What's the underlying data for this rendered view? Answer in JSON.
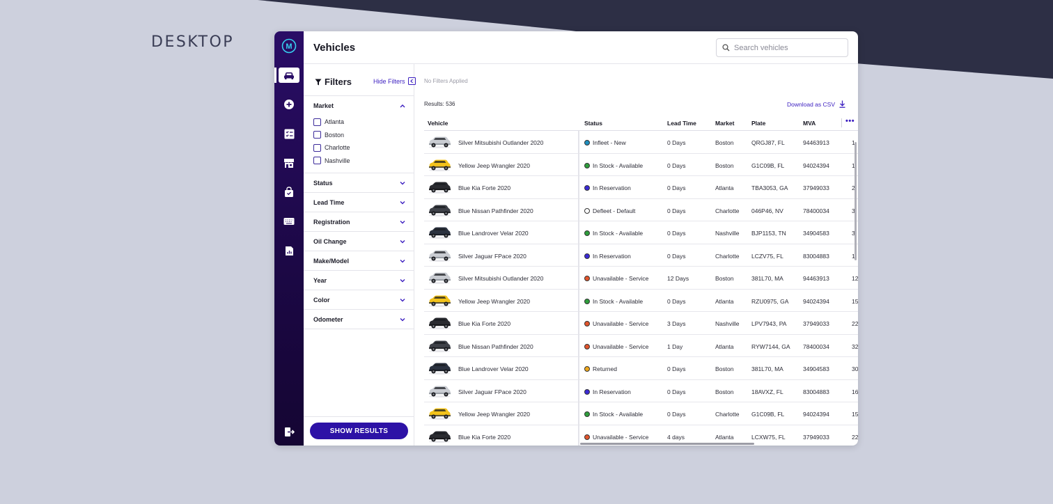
{
  "caption": "DESKTOP",
  "colors": {
    "accent": "#3b1ec0",
    "rail_top": "#2a0d66",
    "rail_bottom": "#150533",
    "background": "#cdd0dd",
    "dark_band": "#2d2f45"
  },
  "app": {
    "logo_letter": "M",
    "rail_icons": [
      "car-icon",
      "plus-circle-icon",
      "checklist-icon",
      "store-icon",
      "shopping-bag-icon",
      "keyboard-icon",
      "report-icon",
      "logout-icon"
    ],
    "title": "Vehicles",
    "search_placeholder": "Search vehicles"
  },
  "filters": {
    "title": "Filters",
    "hide_label": "Hide Filters",
    "market": {
      "label": "Market",
      "options": [
        "Atlanta",
        "Boston",
        "Charlotte",
        "Nashville"
      ]
    },
    "sections": [
      "Status",
      "Lead Time",
      "Registration",
      "Oil Change",
      "Make/Model",
      "Year",
      "Color",
      "Odometer"
    ],
    "show_results": "SHOW RESULTS"
  },
  "main": {
    "no_filters": "No Filters Applied",
    "results": "Results: 536",
    "download": "Download as CSV"
  },
  "table": {
    "columns": [
      "Vehicle",
      "Status",
      "Lead Time",
      "Market",
      "Plate",
      "MVA"
    ],
    "more": "•••",
    "rows": [
      {
        "vehicle": "Silver Mitsubishi Outlander 2020",
        "car": "silver",
        "status": "Infleet - New",
        "status_color": "#1e8fbf",
        "lead": "0 Days",
        "market": "Boston",
        "plate": "QRGJ87, FL",
        "mva": "94463913",
        "extra": "1"
      },
      {
        "vehicle": "Yellow Jeep Wrangler 2020",
        "car": "yellow",
        "status": "In Stock - Available",
        "status_color": "#2e9e3c",
        "lead": "0 Days",
        "market": "Boston",
        "plate": "G1C09B, FL",
        "mva": "94024394",
        "extra": "1"
      },
      {
        "vehicle": "Blue Kia Forte 2020",
        "car": "black",
        "status": "In Reservation",
        "status_color": "#3b2ad6",
        "lead": "0 Days",
        "market": "Atlanta",
        "plate": "TBA3053, GA",
        "mva": "37949033",
        "extra": "2"
      },
      {
        "vehicle": "Blue Nissan Pathfinder 2020",
        "car": "dark",
        "status": "Defleet - Default",
        "status_color": "#ffffff",
        "lead": "0 Days",
        "market": "Charlotte",
        "plate": "046P46, NV",
        "mva": "78400034",
        "extra": "3"
      },
      {
        "vehicle": "Blue Landrover Velar 2020",
        "car": "navy",
        "status": "In Stock - Available",
        "status_color": "#2e9e3c",
        "lead": "0 Days",
        "market": "Nashville",
        "plate": "BJP1153, TN",
        "mva": "34904583",
        "extra": "3"
      },
      {
        "vehicle": "Silver Jaguar FPace 2020",
        "car": "silver",
        "status": "In Reservation",
        "status_color": "#3b2ad6",
        "lead": "0 Days",
        "market": "Charlotte",
        "plate": "LCZV75, FL",
        "mva": "83004883",
        "extra": "1"
      },
      {
        "vehicle": "Silver Mitsubishi Outlander 2020",
        "car": "silver",
        "status": "Unavailable - Service",
        "status_color": "#e2552c",
        "lead": "12 Days",
        "market": "Boston",
        "plate": "381L70, MA",
        "mva": "94463913",
        "extra": "12"
      },
      {
        "vehicle": "Yellow Jeep Wrangler 2020",
        "car": "yellow",
        "status": "In Stock - Available",
        "status_color": "#2e9e3c",
        "lead": "0 Days",
        "market": "Atlanta",
        "plate": "RZU0975, GA",
        "mva": "94024394",
        "extra": "15"
      },
      {
        "vehicle": "Blue Kia Forte 2020",
        "car": "black",
        "status": "Unavailable - Service",
        "status_color": "#e2552c",
        "lead": "3 Days",
        "market": "Nashville",
        "plate": "LPV7943, PA",
        "mva": "37949033",
        "extra": "22"
      },
      {
        "vehicle": "Blue Nissan Pathfinder 2020",
        "car": "dark",
        "status": "Unavailable - Service",
        "status_color": "#e2552c",
        "lead": "1 Day",
        "market": "Atlanta",
        "plate": "RYW7144, GA",
        "mva": "78400034",
        "extra": "32"
      },
      {
        "vehicle": "Blue Landrover Velar 2020",
        "car": "navy",
        "status": "Returned",
        "status_color": "#f0a81c",
        "lead": "0 Days",
        "market": "Boston",
        "plate": "381L70, MA",
        "mva": "34904583",
        "extra": "30"
      },
      {
        "vehicle": "Silver Jaguar FPace 2020",
        "car": "silver",
        "status": "In Reservation",
        "status_color": "#3b2ad6",
        "lead": "0 Days",
        "market": "Boston",
        "plate": "18AVXZ, FL",
        "mva": "83004883",
        "extra": "16"
      },
      {
        "vehicle": "Yellow Jeep Wrangler 2020",
        "car": "yellow",
        "status": "In Stock - Available",
        "status_color": "#2e9e3c",
        "lead": "0 Days",
        "market": "Charlotte",
        "plate": "G1C09B, FL",
        "mva": "94024394",
        "extra": "15"
      },
      {
        "vehicle": "Blue Kia Forte 2020",
        "car": "black",
        "status": "Unavailable - Service",
        "status_color": "#e2552c",
        "lead": "4 days",
        "market": "Atlanta",
        "plate": "LCXW75, FL",
        "mva": "37949033",
        "extra": "22"
      }
    ]
  }
}
